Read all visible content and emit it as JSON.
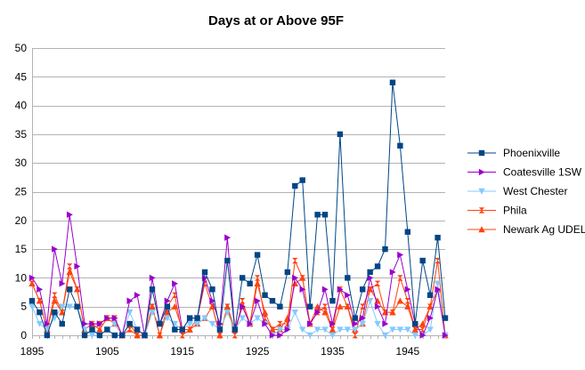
{
  "chart_data": {
    "type": "line",
    "title": "Days at or Above 95F",
    "xlabel": "",
    "ylabel": "",
    "ylim": [
      0,
      50
    ],
    "yticks": [
      0,
      5,
      10,
      15,
      20,
      25,
      30,
      35,
      40,
      45,
      50
    ],
    "xlim": [
      1895,
      1950
    ],
    "xtick_labels": [
      "1895",
      "1905",
      "1915",
      "1925",
      "1935",
      "1945"
    ],
    "grid": "horizontal",
    "legend_position": "right",
    "x": [
      1895,
      1896,
      1897,
      1898,
      1899,
      1900,
      1901,
      1902,
      1903,
      1904,
      1905,
      1906,
      1907,
      1908,
      1909,
      1910,
      1911,
      1912,
      1913,
      1914,
      1915,
      1916,
      1917,
      1918,
      1919,
      1920,
      1921,
      1922,
      1923,
      1924,
      1925,
      1926,
      1927,
      1928,
      1929,
      1930,
      1931,
      1932,
      1933,
      1934,
      1935,
      1936,
      1937,
      1938,
      1939,
      1940,
      1941,
      1942,
      1943,
      1944,
      1945,
      1946,
      1947,
      1948,
      1949,
      1950
    ],
    "series": [
      {
        "name": "Phoenixville",
        "color": "#004586",
        "marker": "square",
        "values": [
          6,
          4,
          0,
          4,
          2,
          8,
          5,
          0,
          1,
          0,
          1,
          0,
          0,
          2,
          1,
          0,
          8,
          2,
          5,
          1,
          1,
          3,
          3,
          11,
          8,
          1,
          13,
          1,
          10,
          9,
          14,
          7,
          6,
          5,
          11,
          26,
          27,
          5,
          21,
          21,
          6,
          35,
          10,
          3,
          8,
          11,
          12,
          15,
          44,
          33,
          18,
          2,
          13,
          7,
          17,
          3
        ]
      },
      {
        "name": "Coatesville 1SW",
        "color": "#9900cc",
        "marker": "triangle-right",
        "values": [
          10,
          8,
          2,
          15,
          9,
          21,
          12,
          2,
          2,
          2,
          3,
          3,
          0,
          6,
          7,
          0,
          10,
          2,
          6,
          9,
          1,
          3,
          3,
          10,
          6,
          2,
          17,
          1,
          5,
          2,
          6,
          2,
          0,
          0,
          1,
          10,
          8,
          2,
          4,
          8,
          2,
          8,
          7,
          2,
          3,
          10,
          5,
          2,
          11,
          14,
          8,
          2,
          0,
          3,
          8,
          0
        ]
      },
      {
        "name": "West Chester",
        "color": "#83caff",
        "marker": "triangle-down",
        "values": [
          5,
          2,
          1,
          3,
          5,
          5,
          5,
          1,
          0,
          0,
          1,
          2,
          0,
          4,
          1,
          0,
          4,
          2,
          3,
          2,
          1,
          2,
          2,
          3,
          2,
          1,
          4,
          1,
          3,
          2,
          3,
          2,
          0,
          1,
          1,
          4,
          1,
          0,
          1,
          1,
          0,
          1,
          1,
          1,
          2,
          6,
          2,
          0,
          1,
          1,
          1,
          0,
          0,
          1,
          9,
          0
        ]
      },
      {
        "name": "Phila",
        "color": "#ff420e",
        "marker": "hourglass",
        "values": [
          9,
          6,
          1,
          7,
          4,
          12,
          8,
          1,
          2,
          2,
          3,
          3,
          0,
          1,
          0,
          0,
          5,
          0,
          5,
          7,
          0,
          1,
          3,
          9,
          5,
          0,
          5,
          0,
          6,
          2,
          10,
          3,
          1,
          2,
          2,
          13,
          10,
          2,
          4,
          5,
          1,
          8,
          5,
          0,
          5,
          8,
          9,
          4,
          4,
          10,
          6,
          1,
          1,
          5,
          13,
          0
        ]
      },
      {
        "name": "Newark Ag UDEL",
        "color": "#ff420e",
        "marker": "triangle-up",
        "values": [
          9,
          6,
          1,
          6,
          4,
          11,
          8,
          1,
          2,
          1,
          3,
          2,
          0,
          2,
          0,
          0,
          5,
          0,
          4,
          5,
          1,
          1,
          2,
          3,
          5,
          0,
          5,
          1,
          5,
          2,
          9,
          4,
          1,
          1,
          3,
          9,
          10,
          2,
          5,
          4,
          1,
          5,
          5,
          1,
          2,
          8,
          6,
          4,
          4,
          6,
          5,
          1,
          2,
          5,
          8,
          0
        ]
      }
    ]
  }
}
